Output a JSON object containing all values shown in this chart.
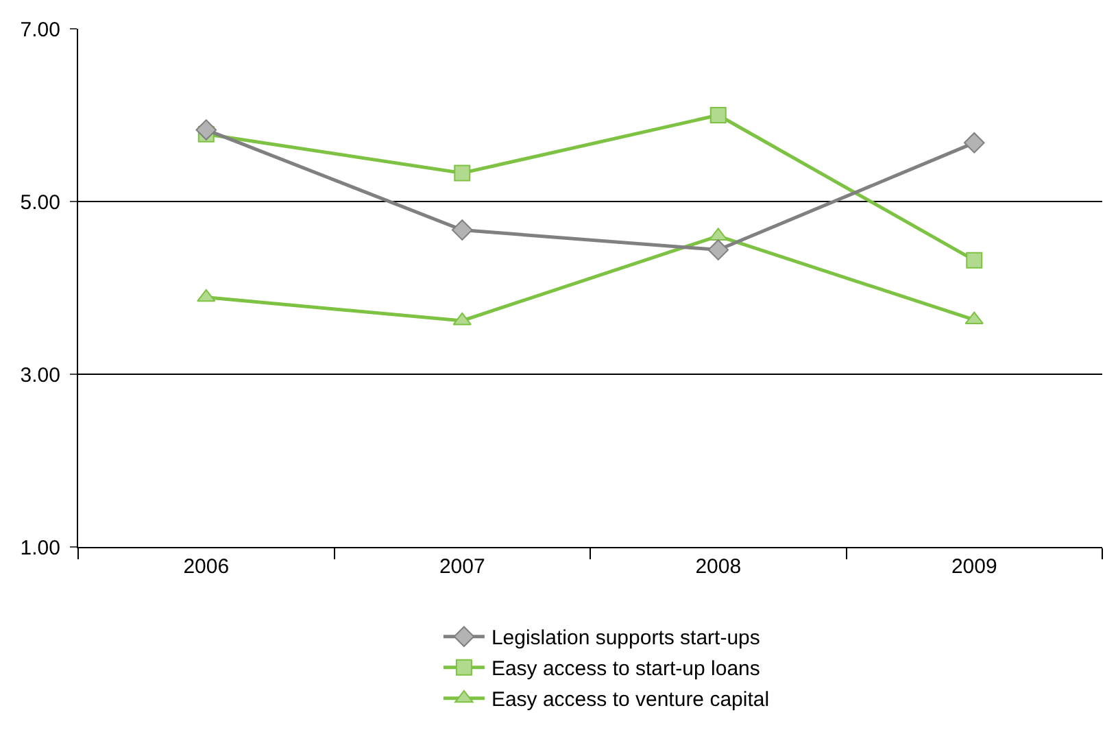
{
  "chart_data": {
    "type": "line",
    "categories": [
      "2006",
      "2007",
      "2008",
      "2009"
    ],
    "series": [
      {
        "name": "Legislation supports start-ups",
        "color": "#808080",
        "marker": "diamond",
        "values": [
          5.83,
          4.67,
          4.44,
          5.68
        ]
      },
      {
        "name": "Easy access to start-up loans",
        "color": "#7dc242",
        "marker": "square",
        "values": [
          5.78,
          5.33,
          6.0,
          4.32
        ]
      },
      {
        "name": "Easy access to venture capital",
        "color": "#7dc242",
        "marker": "triangle",
        "values": [
          3.89,
          3.62,
          4.6,
          3.63
        ]
      }
    ],
    "ylim": [
      1,
      7
    ],
    "yticks": [
      {
        "value": 1,
        "label": "1.00"
      },
      {
        "value": 3,
        "label": "3.00"
      },
      {
        "value": 5,
        "label": "5.00"
      },
      {
        "value": 7,
        "label": "7.00"
      }
    ],
    "grid": "y",
    "legend": "bottom",
    "line_style": "solid"
  }
}
